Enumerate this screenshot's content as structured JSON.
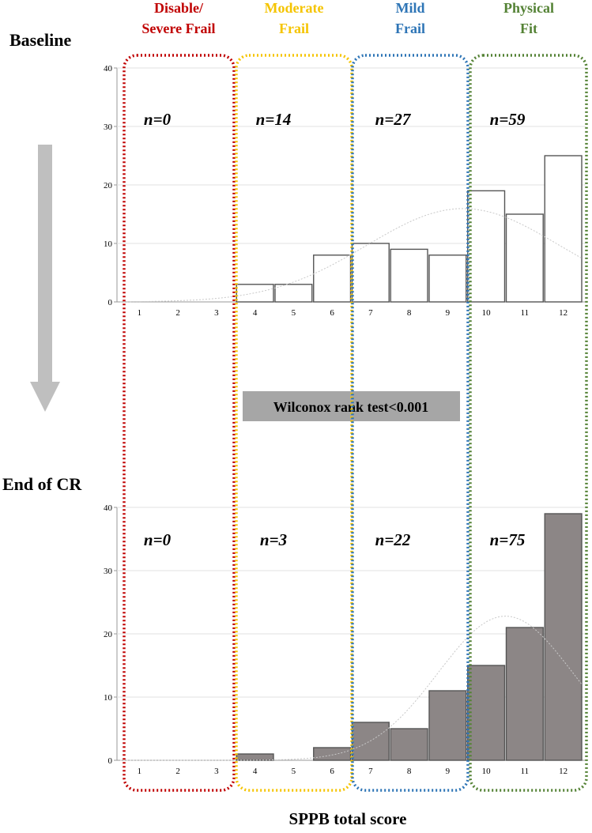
{
  "colors": {
    "disabled": "#c00000",
    "moderate": "#f5c400",
    "mild": "#2e75b6",
    "fit": "#548235",
    "bar_baseline_fill": "#ffffff",
    "bar_end_fill": "#8c8686",
    "bar_stroke": "#555555",
    "arrow": "#bfbfbf",
    "test_box": "#a6a6a6"
  },
  "chart_data": {
    "type": "bar",
    "xlabel": "SPPB total score",
    "categories": [
      "1",
      "2",
      "3",
      "4",
      "5",
      "6",
      "7",
      "8",
      "9",
      "10",
      "11",
      "12"
    ],
    "group_labels": [
      {
        "line1": "Disable/",
        "line2": "Severe Frail",
        "color": "#c00000"
      },
      {
        "line1": "Moderate",
        "line2": "Frail",
        "color": "#f5c400"
      },
      {
        "line1": "Mild",
        "line2": "Frail",
        "color": "#2e75b6"
      },
      {
        "line1": "Physical",
        "line2": "Fit",
        "color": "#548235"
      }
    ],
    "test_label": "Wilconox rank test<0.001",
    "panels": [
      {
        "label": "Baseline",
        "values": [
          0,
          0,
          0,
          3,
          3,
          8,
          10,
          9,
          8,
          19,
          15,
          25
        ],
        "ylim": [
          0,
          40
        ],
        "yticks": [
          "0",
          "10",
          "20",
          "30",
          "40"
        ],
        "n_labels": [
          "n=0",
          "n=14",
          "n=27",
          "n=59"
        ],
        "bar_color": "#ffffff",
        "normal_curve": {
          "mean": 9.4,
          "sd": 2.5
        }
      },
      {
        "label": "End of CR",
        "values": [
          0,
          0,
          0,
          1,
          0,
          2,
          6,
          5,
          11,
          15,
          21,
          39
        ],
        "ylim": [
          0,
          40
        ],
        "yticks": [
          "0",
          "10",
          "20",
          "30",
          "40"
        ],
        "n_labels": [
          "n=0",
          "n=3",
          "n=22",
          "n=75"
        ],
        "bar_color": "#8c8686",
        "normal_curve": {
          "mean": 10.5,
          "sd": 1.75
        }
      }
    ]
  }
}
